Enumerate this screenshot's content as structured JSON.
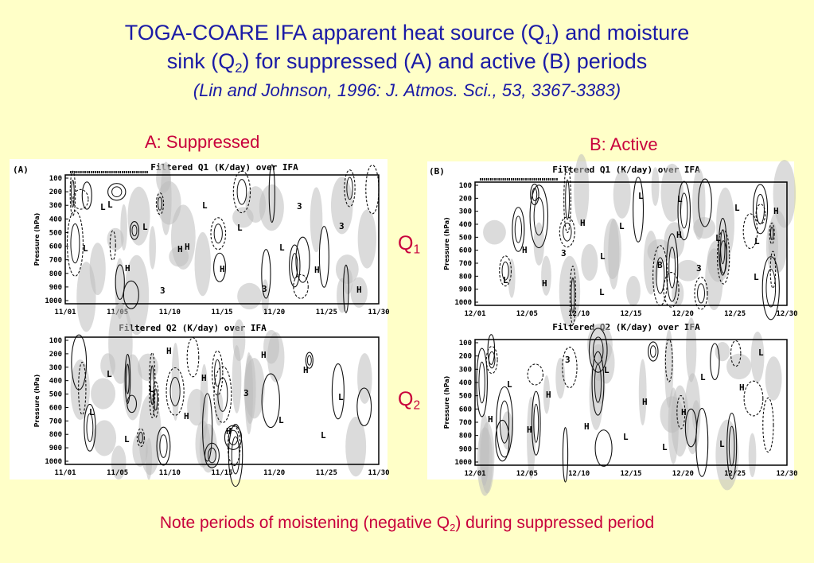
{
  "title": {
    "line1_pre": "TOGA-COARE IFA apparent heat source (Q",
    "line1_sub": "1",
    "line1_post": ") and moisture",
    "line2_pre": "sink (Q",
    "line2_sub": "2",
    "line2_post": ") for suppressed (A) and active (B) periods",
    "citation": "(Lin and Johnson, 1996: J. Atmos. Sci., 53, 3367-3383)"
  },
  "labels": {
    "panel_a": "A: Suppressed",
    "panel_b": "B: Active",
    "q1_main": "Q",
    "q1_sub": "1",
    "q2_main": "Q",
    "q2_sub": "2"
  },
  "note": {
    "pre": "Note periods of moistening (negative Q",
    "sub": "2",
    "post": ") during suppressed period"
  },
  "colors": {
    "background": "#ffffc8",
    "title": "#1a1aa6",
    "accent": "#c8003c"
  },
  "chart_data": [
    {
      "type": "heatmap",
      "panel_tag": "(A)",
      "title": "Filtered Q1 (K/day) over IFA",
      "ylabel": "Pressure (hPa)",
      "y_ticks": [
        "100",
        "200",
        "300",
        "400",
        "500",
        "600",
        "700",
        "800",
        "900",
        "1000"
      ],
      "x_ticks": [
        "11/01",
        "11/05",
        "11/10",
        "11/15",
        "11/20",
        "11/25",
        "11/30"
      ],
      "annotations": [
        "L",
        "H",
        "3",
        "3",
        "H",
        "L",
        "L",
        "H",
        "L",
        "H",
        "3",
        "L",
        "3",
        "L",
        "H",
        "L",
        "H"
      ]
    },
    {
      "type": "heatmap",
      "title": "Filtered Q2 (K/day) over IFA",
      "ylabel": "Pressure (hPa)",
      "y_ticks": [
        "100",
        "200",
        "300",
        "400",
        "500",
        "600",
        "700",
        "800",
        "900",
        "1000"
      ],
      "x_ticks": [
        "11/01",
        "11/05",
        "11/10",
        "11/15",
        "11/20",
        "11/25",
        "11/30"
      ],
      "annotations": [
        "L",
        "H",
        "H",
        "L",
        "H",
        "3",
        "L",
        "L",
        "H",
        "H",
        "L",
        "L",
        "H",
        "L"
      ]
    },
    {
      "type": "heatmap",
      "panel_tag": "(B)",
      "title": "Filtered Q1 (K/day) over IFA",
      "ylabel": "Pressure (hPa)",
      "y_ticks": [
        "100",
        "200",
        "300",
        "400",
        "500",
        "600",
        "700",
        "800",
        "900",
        "1000"
      ],
      "x_ticks": [
        "12/01",
        "12/05",
        "12/10",
        "12/15",
        "12/20",
        "12/25",
        "12/30"
      ],
      "annotations": [
        "L",
        "L",
        "L",
        "H",
        "L",
        "3",
        "H",
        "3",
        "L",
        "L",
        "L",
        "H",
        "B",
        "L",
        "H",
        "L",
        "H",
        "L"
      ]
    },
    {
      "type": "heatmap",
      "title": "Filtered Q2 (K/day) over IFA",
      "ylabel": "Pressure (hPa)",
      "y_ticks": [
        "100",
        "200",
        "300",
        "400",
        "500",
        "600",
        "700",
        "800",
        "900",
        "1000"
      ],
      "x_ticks": [
        "12/01",
        "12/05",
        "12/10",
        "12/15",
        "12/20",
        "12/25",
        "12/30"
      ],
      "annotations": [
        "L",
        "H",
        "H",
        "L",
        "H",
        "L",
        "H",
        "L",
        "L",
        "H",
        "3",
        "H",
        "L",
        "L",
        "H"
      ]
    }
  ]
}
